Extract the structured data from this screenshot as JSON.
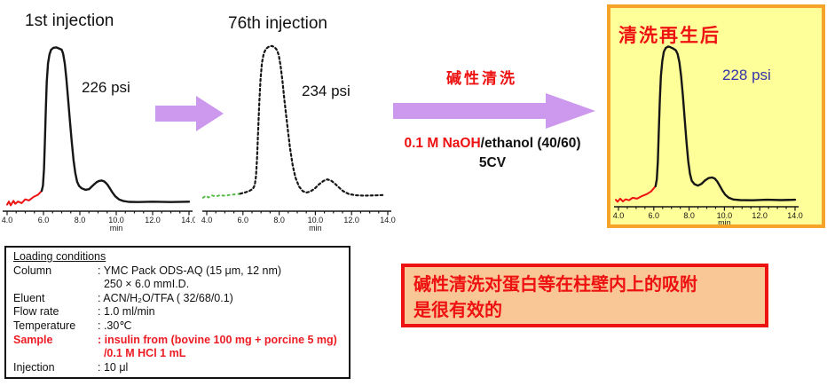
{
  "process": {
    "step_label": "碱性清洗",
    "reagent_highlight": "0.1 M NaOH",
    "reagent_rest": "/ethanol (40/60)",
    "volume": "5CV"
  },
  "loading_conditions": {
    "heading": "Loading conditions",
    "rows": [
      {
        "label": "Column",
        "value": ": YMC Pack ODS-AQ (15 μm, 12 nm)",
        "red": false
      },
      {
        "label": "",
        "value": "  250 × 6.0 mmI.D.",
        "red": false
      },
      {
        "label": "Eluent",
        "value": ": ACN/H₂O/TFA ( 32/68/0.1)",
        "red": false
      },
      {
        "label": "Flow rate",
        "value": ": 1.0 ml/min",
        "red": false
      },
      {
        "label": "Temperature",
        "value": ": .30℃",
        "red": false
      },
      {
        "label": "Sample",
        "value": ": insulin from (bovine 100 mg + porcine 5 mg)",
        "red": true
      },
      {
        "label": "",
        "value": "  /0.1 M HCl 1 mL",
        "red": true
      },
      {
        "label": "Injection",
        "value": ": 10 μl",
        "red": false
      }
    ]
  },
  "note": {
    "line1": "碱性清洗对蛋白等在柱壁内上的吸附",
    "line2": "是很有效的"
  },
  "colors": {
    "arrow_purple": "#cc99ee",
    "accent_red": "#ee1111",
    "pressure_blue": "#3333aa",
    "panel_yellow_bg": "#ffff99",
    "panel_orange_border": "#f5a329",
    "note_peach_bg": "#f8c795",
    "trace_black": "#161616",
    "trace_red": "#ee1111",
    "trace_green": "#55bb44"
  },
  "chart_data": [
    {
      "type": "line",
      "title": "1st injection",
      "pressure_label": "226 psi",
      "xlabel": "min",
      "x_range": [
        4.0,
        14.0
      ],
      "x_ticks": [
        "4.0",
        "6.0",
        "8.0",
        "10.0",
        "12.0",
        "14.0"
      ],
      "y_axis": "detector response (unlabeled)",
      "peaks": {
        "main_apex_min": 6.7,
        "secondary_apex_min": 9.2
      },
      "series": [
        {
          "name": "baseline-noise",
          "color": "#ee1111",
          "width": 2.0,
          "dash": null,
          "points": [
            [
              4.0,
              -1.5
            ],
            [
              4.1,
              0.5
            ],
            [
              4.2,
              -2
            ],
            [
              4.35,
              1
            ],
            [
              4.45,
              -1
            ],
            [
              4.6,
              0.5
            ],
            [
              4.8,
              -0.5
            ],
            [
              5.0,
              2
            ],
            [
              5.2,
              1.2
            ],
            [
              5.45,
              3.5
            ],
            [
              5.7,
              5
            ],
            [
              5.9,
              7.5
            ]
          ]
        },
        {
          "name": "chromatogram",
          "color": "#161616",
          "width": 2.4,
          "dash": null,
          "points": [
            [
              5.9,
              7.5
            ],
            [
              5.97,
              11
            ],
            [
              6.03,
              22
            ],
            [
              6.08,
              40
            ],
            [
              6.13,
              62
            ],
            [
              6.18,
              79
            ],
            [
              6.25,
              91
            ],
            [
              6.33,
              97
            ],
            [
              6.42,
              100
            ],
            [
              6.55,
              101.3
            ],
            [
              6.7,
              101.5
            ],
            [
              6.85,
              100.8
            ],
            [
              7.0,
              100
            ],
            [
              7.08,
              97.5
            ],
            [
              7.17,
              91
            ],
            [
              7.26,
              81
            ],
            [
              7.35,
              68
            ],
            [
              7.45,
              54
            ],
            [
              7.55,
              40
            ],
            [
              7.65,
              28
            ],
            [
              7.75,
              19
            ],
            [
              7.85,
              13.5
            ],
            [
              7.95,
              10.8
            ],
            [
              8.1,
              9.2
            ],
            [
              8.3,
              8.2
            ],
            [
              8.5,
              8.6
            ],
            [
              8.7,
              10.8
            ],
            [
              8.9,
              13
            ],
            [
              9.05,
              14
            ],
            [
              9.2,
              14.3
            ],
            [
              9.35,
              13.6
            ],
            [
              9.5,
              11.8
            ],
            [
              9.65,
              9.2
            ],
            [
              9.8,
              6.3
            ],
            [
              9.95,
              3.9
            ],
            [
              10.15,
              1.9
            ],
            [
              10.4,
              0.8
            ],
            [
              10.7,
              0.3
            ],
            [
              11.2,
              0.2
            ],
            [
              12.0,
              0.4
            ],
            [
              13.0,
              0.2
            ],
            [
              14.0,
              0.4
            ]
          ]
        }
      ]
    },
    {
      "type": "line",
      "title": "76th injection",
      "pressure_label": "234 psi",
      "xlabel": "min",
      "x_range": [
        4.0,
        14.0
      ],
      "x_ticks": [
        "4.0",
        "6.0",
        "8.0",
        "10.0",
        "12.0",
        "14.0"
      ],
      "y_axis": "detector response (unlabeled)",
      "peaks": {
        "main_apex_min": 7.5,
        "secondary_apex_min": 10.6
      },
      "series": [
        {
          "name": "baseline-noise",
          "color": "#55bb44",
          "width": 2.0,
          "dash": "2 4",
          "points": [
            [
              3.8,
              -0.5
            ],
            [
              3.95,
              0.8
            ],
            [
              4.1,
              -0.3
            ],
            [
              4.3,
              1
            ],
            [
              4.5,
              0.3
            ],
            [
              4.75,
              1.3
            ],
            [
              5.0,
              0.8
            ],
            [
              5.3,
              1.5
            ],
            [
              5.6,
              1.8
            ],
            [
              5.85,
              2.2
            ]
          ]
        },
        {
          "name": "chromatogram",
          "color": "#161616",
          "width": 2.2,
          "dash": "2.5 3",
          "points": [
            [
              5.85,
              2.2
            ],
            [
              6.1,
              3
            ],
            [
              6.35,
              4
            ],
            [
              6.55,
              5.5
            ],
            [
              6.65,
              8
            ],
            [
              6.72,
              14
            ],
            [
              6.78,
              26
            ],
            [
              6.84,
              44
            ],
            [
              6.9,
              63
            ],
            [
              6.97,
              79
            ],
            [
              7.05,
              90
            ],
            [
              7.15,
              96.5
            ],
            [
              7.28,
              99.5
            ],
            [
              7.45,
              101
            ],
            [
              7.6,
              101.3
            ],
            [
              7.75,
              100.5
            ],
            [
              7.88,
              98.5
            ],
            [
              7.98,
              95
            ],
            [
              8.08,
              88
            ],
            [
              8.18,
              78
            ],
            [
              8.3,
              64
            ],
            [
              8.45,
              48
            ],
            [
              8.6,
              33
            ],
            [
              8.75,
              21
            ],
            [
              8.9,
              13
            ],
            [
              9.1,
              7
            ],
            [
              9.3,
              4
            ],
            [
              9.5,
              3
            ],
            [
              9.7,
              3.6
            ],
            [
              9.95,
              5.5
            ],
            [
              10.2,
              8.5
            ],
            [
              10.45,
              10.8
            ],
            [
              10.65,
              11.8
            ],
            [
              10.85,
              11.2
            ],
            [
              11.05,
              9.3
            ],
            [
              11.3,
              6.4
            ],
            [
              11.55,
              3.8
            ],
            [
              11.85,
              2
            ],
            [
              12.2,
              1.2
            ],
            [
              12.7,
              0.9
            ],
            [
              13.3,
              1.1
            ],
            [
              13.75,
              1.3
            ]
          ]
        }
      ]
    },
    {
      "type": "line",
      "title": "清洗再生后",
      "pressure_label": "228 psi",
      "xlabel": "min",
      "x_range": [
        4.0,
        14.0
      ],
      "x_ticks": [
        "4.0",
        "6.0",
        "8.0",
        "10.0",
        "12.0",
        "14.0"
      ],
      "y_axis": "detector response (unlabeled)",
      "peaks": {
        "main_apex_min": 6.9,
        "secondary_apex_min": 9.3
      },
      "series": [
        {
          "name": "baseline-noise",
          "color": "#ee1111",
          "width": 2.0,
          "dash": null,
          "points": [
            [
              3.85,
              0.5
            ],
            [
              3.95,
              -0.8
            ],
            [
              4.1,
              1.2
            ],
            [
              4.25,
              -0.6
            ],
            [
              4.4,
              0.8
            ],
            [
              4.6,
              0.2
            ],
            [
              4.8,
              1.8
            ],
            [
              5.05,
              1.2
            ],
            [
              5.3,
              2.8
            ],
            [
              5.6,
              4.2
            ],
            [
              5.85,
              6
            ],
            [
              6.1,
              9.5
            ]
          ]
        },
        {
          "name": "chromatogram",
          "color": "#161616",
          "width": 2.4,
          "dash": null,
          "points": [
            [
              6.1,
              9.5
            ],
            [
              6.17,
              14
            ],
            [
              6.23,
              26
            ],
            [
              6.28,
              45
            ],
            [
              6.34,
              66
            ],
            [
              6.4,
              82
            ],
            [
              6.48,
              92
            ],
            [
              6.57,
              98
            ],
            [
              6.68,
              100.6
            ],
            [
              6.82,
              101.5
            ],
            [
              6.95,
              101
            ],
            [
              7.1,
              100.2
            ],
            [
              7.25,
              99
            ],
            [
              7.35,
              96.5
            ],
            [
              7.45,
              91
            ],
            [
              7.55,
              82
            ],
            [
              7.65,
              69
            ],
            [
              7.75,
              54
            ],
            [
              7.85,
              39
            ],
            [
              7.95,
              26
            ],
            [
              8.05,
              17.5
            ],
            [
              8.15,
              13
            ],
            [
              8.3,
              10.8
            ],
            [
              8.5,
              9.8
            ],
            [
              8.7,
              11
            ],
            [
              8.9,
              13.2
            ],
            [
              9.1,
              14.8
            ],
            [
              9.3,
              15.2
            ],
            [
              9.45,
              14.5
            ],
            [
              9.6,
              12.5
            ],
            [
              9.75,
              9.5
            ],
            [
              9.9,
              6.3
            ],
            [
              10.05,
              3.8
            ],
            [
              10.25,
              1.8
            ],
            [
              10.5,
              0.7
            ],
            [
              10.9,
              0.3
            ],
            [
              11.6,
              0.2
            ],
            [
              12.4,
              0.5
            ],
            [
              13.2,
              0.3
            ],
            [
              14.0,
              0.5
            ]
          ]
        }
      ]
    }
  ]
}
